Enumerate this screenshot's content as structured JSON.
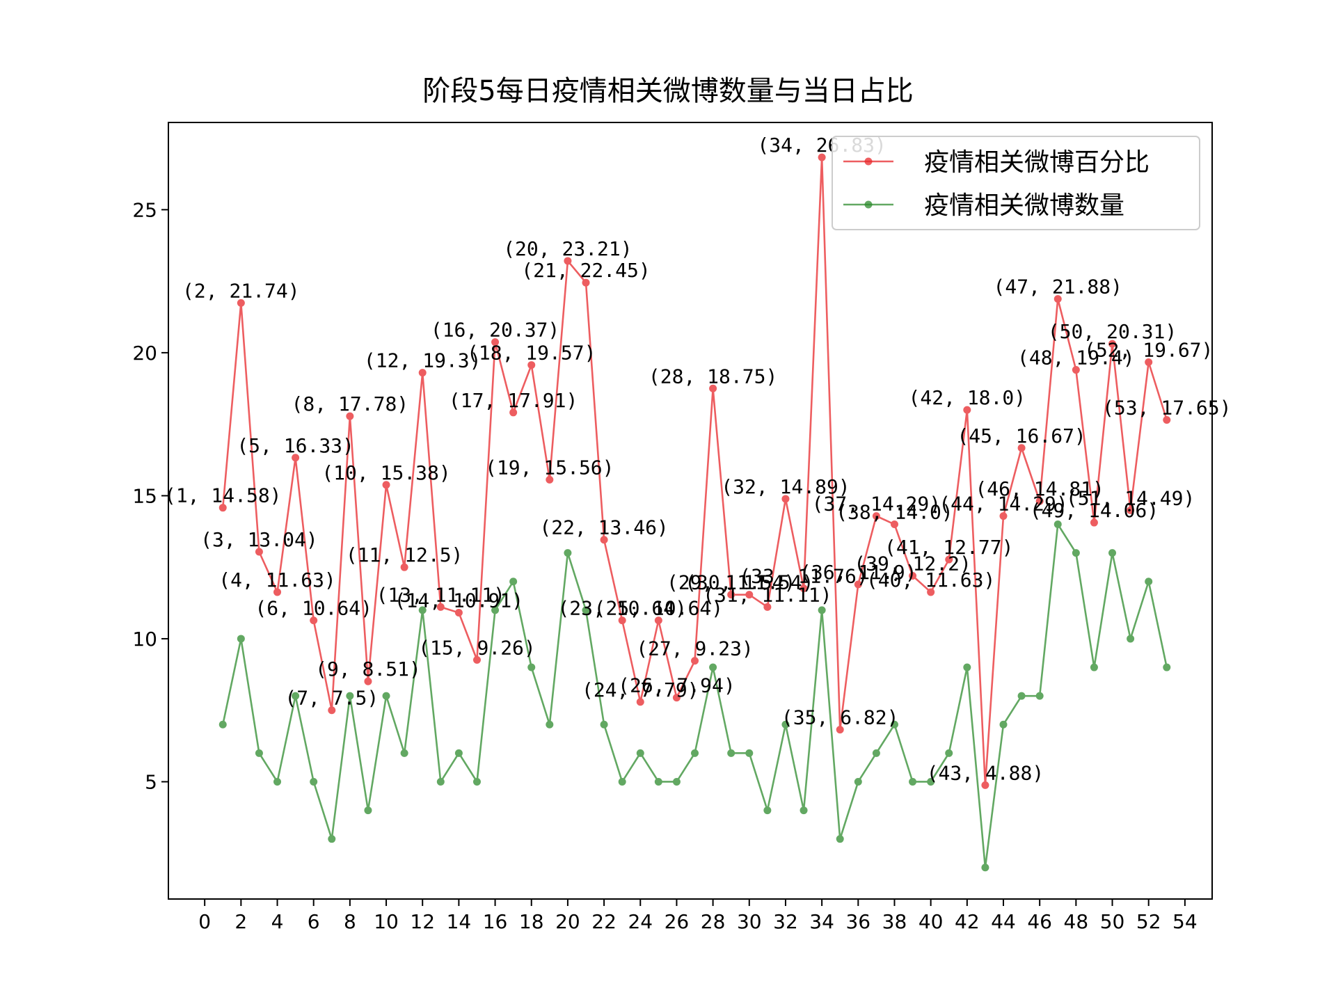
{
  "chart_data": {
    "type": "line",
    "title": "阶段5每日疫情相关微博数量与当日占比",
    "xlabel": "",
    "ylabel": "",
    "xlim": [
      -2,
      55.5
    ],
    "ylim": [
      0.9,
      28.05
    ],
    "x_ticks": [
      0,
      2,
      4,
      6,
      8,
      10,
      12,
      14,
      16,
      18,
      20,
      22,
      24,
      26,
      28,
      30,
      32,
      34,
      36,
      38,
      40,
      42,
      44,
      46,
      48,
      50,
      52,
      54
    ],
    "y_ticks": [
      5,
      10,
      15,
      20,
      25
    ],
    "grid": false,
    "legend_position": "top-right",
    "x": [
      1,
      2,
      3,
      4,
      5,
      6,
      7,
      8,
      9,
      10,
      11,
      12,
      13,
      14,
      15,
      16,
      17,
      18,
      19,
      20,
      21,
      22,
      23,
      24,
      25,
      26,
      27,
      28,
      29,
      30,
      31,
      32,
      33,
      34,
      35,
      36,
      37,
      38,
      39,
      40,
      41,
      42,
      43,
      44,
      45,
      46,
      47,
      48,
      49,
      50,
      51,
      52,
      53
    ],
    "series": [
      {
        "name": "疫情相关微博百分比",
        "color": "#e8282b",
        "values": [
          14.58,
          21.74,
          13.04,
          11.63,
          16.33,
          10.64,
          7.5,
          17.78,
          8.51,
          15.38,
          12.5,
          19.3,
          11.11,
          10.91,
          9.26,
          20.37,
          17.91,
          19.57,
          15.56,
          23.21,
          22.45,
          13.46,
          10.64,
          7.79,
          10.64,
          7.94,
          9.23,
          18.75,
          11.54,
          11.54,
          11.11,
          14.89,
          11.76,
          26.83,
          6.82,
          11.9,
          14.29,
          14.0,
          12.2,
          11.63,
          12.77,
          18.0,
          4.88,
          14.29,
          16.67,
          14.81,
          21.88,
          19.4,
          14.06,
          20.31,
          14.49,
          19.67,
          17.65
        ],
        "labels": [
          "(1, 14.58)",
          "(2, 21.74)",
          "(3, 13.04)",
          "(4, 11.63)",
          "(5, 16.33)",
          "(6, 10.64)",
          "(7, 7.5)",
          "(8, 17.78)",
          "(9, 8.51)",
          "(10, 15.38)",
          "(11, 12.5)",
          "(12, 19.3)",
          "(13, 11.11)",
          "(14, 10.91)",
          "(15, 9.26)",
          "(16, 20.37)",
          "(17, 17.91)",
          "(18, 19.57)",
          "(19, 15.56)",
          "(20, 23.21)",
          "(21, 22.45)",
          "(22, 13.46)",
          "(23, 10.64)",
          "(24, 7.79)",
          "(25, 10.64)",
          "(26, 7.94)",
          "(27, 9.23)",
          "(28, 18.75)",
          "(29, 11.54)",
          "(30, 11.54)",
          "(31, 11.11)",
          "(32, 14.89)",
          "(33, 11.76)",
          "(34, 26.83)",
          "(35, 6.82)",
          "(36, 11.9)",
          "(37, 14.29)",
          "(38, 14.0)",
          "(39, 12.2)",
          "(40, 11.63)",
          "(41, 12.77)",
          "(42, 18.0)",
          "(43, 4.88)",
          "(44, 14.29)",
          "(45, 16.67)",
          "(46, 14.81)",
          "(47, 21.88)",
          "(48, 19.4)",
          "(49, 14.06)",
          "(50, 20.31)",
          "(51, 14.49)",
          "(52, 19.67)",
          "(53, 17.65)"
        ]
      },
      {
        "name": "疫情相关微博数量",
        "color": "#2e8b2e",
        "values": [
          7,
          10,
          6,
          5,
          8,
          5,
          3,
          8,
          4,
          8,
          6,
          11,
          5,
          6,
          5,
          11,
          12,
          9,
          7,
          13,
          11,
          7,
          5,
          6,
          5,
          5,
          6,
          9,
          6,
          6,
          4,
          7,
          4,
          11,
          3,
          5,
          6,
          7,
          5,
          5,
          6,
          9,
          2,
          7,
          8,
          8,
          14,
          13,
          9,
          13,
          10,
          12,
          9
        ]
      }
    ]
  }
}
